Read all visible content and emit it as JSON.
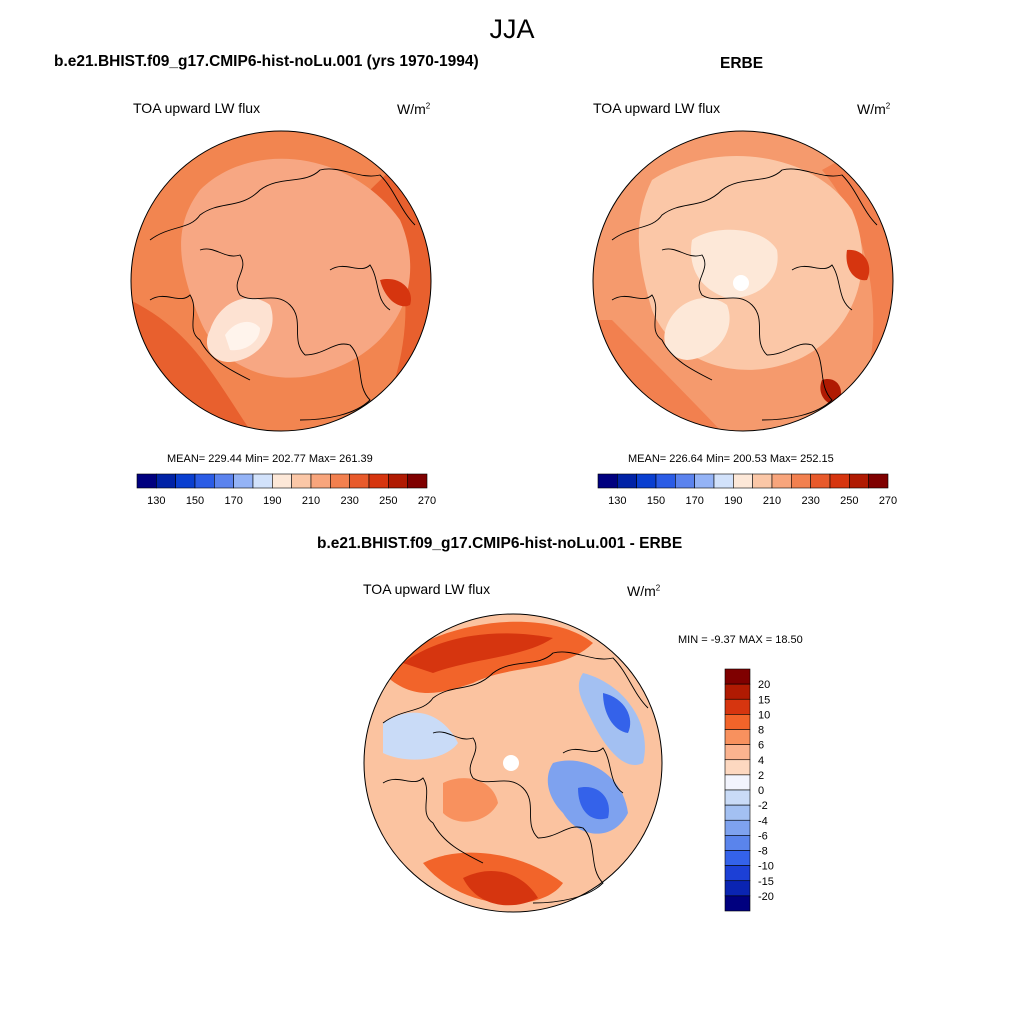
{
  "figure": {
    "season": "JJA",
    "panels": [
      {
        "title": "b.e21.BHIST.f09_g17.CMIP6-hist-noLu.001 (yrs 1970-1994)",
        "variable": "TOA upward LW flux",
        "units_base": "W/m",
        "units_sup": "2",
        "stats": "MEAN= 229.44  Min= 202.77  Max= 261.39"
      },
      {
        "title": "ERBE",
        "variable": "TOA upward LW flux",
        "units_base": "W/m",
        "units_sup": "2",
        "stats": "MEAN= 226.64  Min= 200.53  Max= 252.15"
      },
      {
        "title": "b.e21.BHIST.f09_g17.CMIP6-hist-noLu.001 - ERBE",
        "variable": "TOA upward LW flux",
        "units_base": "W/m",
        "units_sup": "2",
        "stats": "MIN =  -9.37 MAX =  18.50"
      }
    ]
  },
  "colorbars": {
    "absolute": {
      "orientation": "horizontal",
      "colors": [
        "#00007f",
        "#0022a6",
        "#0a3fd0",
        "#2b5ce6",
        "#5b83ee",
        "#94b3f6",
        "#d2e2fb",
        "#fde8d8",
        "#fbc7a7",
        "#f8a57c",
        "#f2804f",
        "#e85a2b",
        "#d6350f",
        "#b01a02",
        "#7f0000"
      ],
      "tick_labels": [
        "130",
        "150",
        "170",
        "190",
        "210",
        "230",
        "250",
        "270"
      ]
    },
    "difference": {
      "orientation": "vertical",
      "colors": [
        "#7f0000",
        "#b01a02",
        "#d6350f",
        "#f2642a",
        "#f8915e",
        "#fbb38f",
        "#fdd8c0",
        "#f2f4fd",
        "#c9dbf7",
        "#a3c0f2",
        "#7ea2ef",
        "#5a84ec",
        "#3462ea",
        "#1c40d6",
        "#0a24b2",
        "#00007f"
      ],
      "tick_labels": [
        "20",
        "15",
        "10",
        "8",
        "6",
        "4",
        "2",
        "0",
        "-2",
        "-4",
        "-6",
        "-8",
        "-10",
        "-15",
        "-20"
      ]
    }
  },
  "map_colors": {
    "model_base": "#f28550",
    "obs_base": "#f59a6d",
    "diff_base": "#fbc3a0",
    "coast": "#000000"
  }
}
